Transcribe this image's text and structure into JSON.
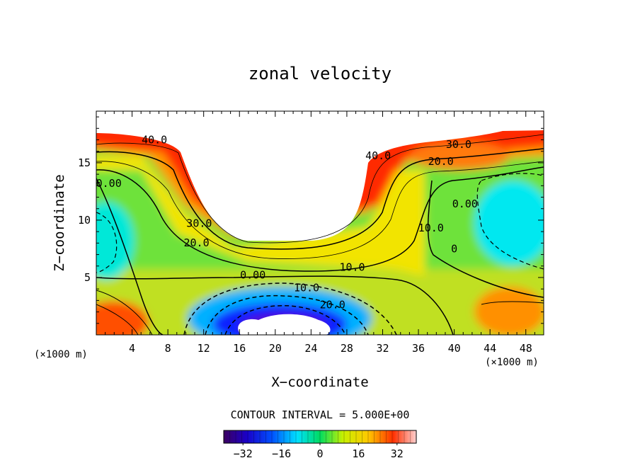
{
  "chart_data": {
    "type": "heatmap",
    "title": "zonal velocity",
    "xlabel": "X−coordinate",
    "ylabel": "Z−coordinate",
    "x_unit_left": "(×1000 m)",
    "x_unit_right": "(×1000 m)",
    "xlim": [
      0,
      50
    ],
    "ylim": [
      0,
      19.5
    ],
    "x_ticks": [
      4,
      8,
      12,
      16,
      20,
      24,
      28,
      32,
      36,
      40,
      44,
      48
    ],
    "y_ticks": [
      5,
      10,
      15
    ],
    "contour_interval_text": "CONTOUR INTERVAL = 5.000E+00",
    "colorbar": {
      "min": -40,
      "max": 40,
      "ticks": [
        -32,
        -16,
        0,
        16,
        32
      ],
      "tick_labels": [
        "−32",
        "−16",
        "0",
        "16",
        "32"
      ]
    },
    "contour_labels": [
      {
        "text": "40.0",
        "x": 6.5,
        "z": 16.7
      },
      {
        "text": "40.0",
        "x": 31.5,
        "z": 15.3
      },
      {
        "text": "30.0",
        "x": 40.5,
        "z": 16.3
      },
      {
        "text": "20.0",
        "x": 38.5,
        "z": 14.8
      },
      {
        "text": "30.0",
        "x": 11.5,
        "z": 9.4
      },
      {
        "text": "20.0",
        "x": 11.2,
        "z": 7.7
      },
      {
        "text": "0.00",
        "x": 1.4,
        "z": 12.9
      },
      {
        "text": "0.00",
        "x": 41.2,
        "z": 11.1
      },
      {
        "text": "10.0",
        "x": 37.4,
        "z": 9.0
      },
      {
        "text": "0",
        "x": 40.0,
        "z": 7.2
      },
      {
        "text": "0.00",
        "x": 17.5,
        "z": 4.9
      },
      {
        "text": "10.0",
        "x": 28.6,
        "z": 5.6
      },
      {
        "text": "10.0",
        "x": 23.5,
        "z": 3.8
      },
      {
        "text": "20.0",
        "x": 26.4,
        "z": 2.3
      }
    ]
  }
}
